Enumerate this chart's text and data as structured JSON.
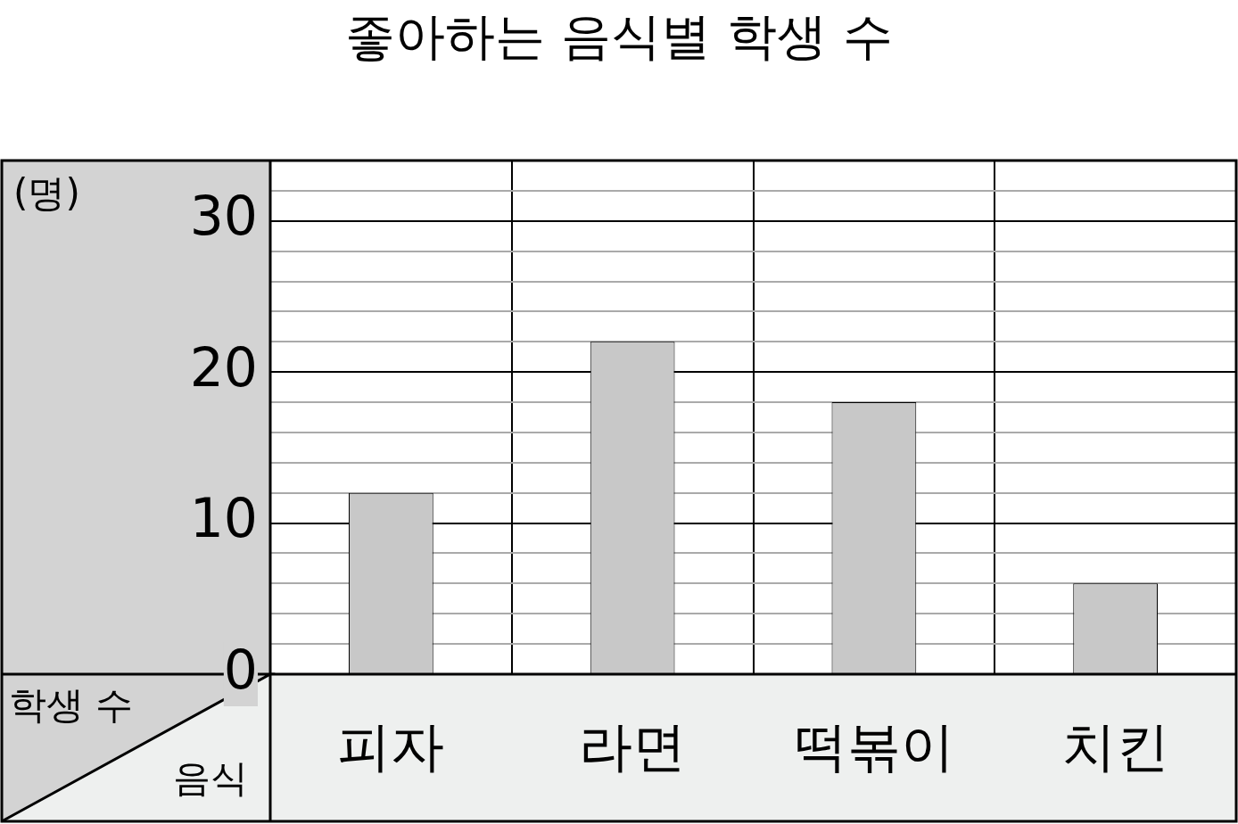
{
  "chart_data": {
    "type": "bar",
    "title": "좋아하는 음식별 학생 수",
    "xlabel": "음식",
    "ylabel": "학생 수",
    "annotations": [
      "(명)"
    ],
    "categories": [
      "피자",
      "라면",
      "떡볶이",
      "치킨"
    ],
    "values": [
      12,
      22,
      18,
      6
    ],
    "color": "#c8c8c8",
    "ylim": [
      0,
      34
    ],
    "yticks": [
      0,
      {
        "value": 2,
        "label": null
      },
      {
        "value": 4,
        "label": null
      },
      {
        "value": 6,
        "label": null
      },
      {
        "value": 8,
        "label": null
      },
      10,
      {
        "value": 12,
        "label": null
      },
      {
        "value": 14,
        "label": null
      },
      {
        "value": 16,
        "label": null
      },
      {
        "value": 18,
        "label": null
      },
      20,
      {
        "value": 22,
        "label": null
      },
      {
        "value": 24,
        "label": null
      },
      {
        "value": 26,
        "label": null
      },
      {
        "value": 28,
        "label": null
      },
      30,
      {
        "value": 32,
        "label": null
      },
      {
        "value": 34,
        "label": null
      }
    ],
    "grid": true,
    "legend": false
  }
}
